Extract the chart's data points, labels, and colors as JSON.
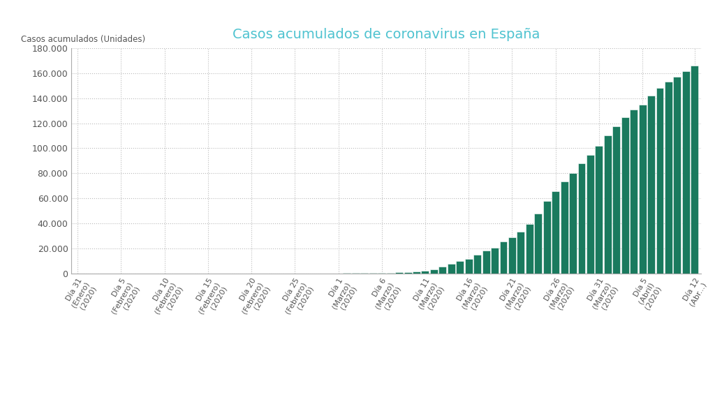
{
  "title": "Casos acumulados de coronavirus en España",
  "ylabel": "Casos acumulados (Unidades)",
  "bar_color": "#1a7a5e",
  "title_color": "#4fc3d0",
  "ylabel_color": "#666666",
  "grid_color": "#bbbbbb",
  "ylim": [
    0,
    180000
  ],
  "yticks": [
    0,
    20000,
    40000,
    60000,
    80000,
    100000,
    120000,
    140000,
    160000,
    180000
  ],
  "values": [
    1,
    1,
    1,
    1,
    1,
    1,
    1,
    1,
    1,
    1,
    2,
    2,
    2,
    2,
    2,
    2,
    2,
    2,
    2,
    2,
    2,
    2,
    2,
    2,
    2,
    3,
    6,
    13,
    32,
    45,
    84,
    120,
    165,
    222,
    259,
    400,
    500,
    673,
    1073,
    1695,
    2277,
    3146,
    5232,
    7798,
    9942,
    11748,
    14769,
    17963,
    20410,
    25374,
    28768,
    33089,
    39673,
    47610,
    57786,
    65719,
    73235,
    80110,
    87956,
    94417,
    102136,
    110238,
    117710,
    124736,
    130759,
    135032,
    141942,
    148220,
    153222,
    157022,
    161852,
    166019
  ],
  "tick_positions": [
    0,
    5,
    10,
    15,
    20,
    25,
    30,
    35,
    40,
    45,
    50,
    55,
    60,
    65,
    71
  ],
  "tick_labels": [
    "Día 31\n(Enero)\n(2020)",
    "Día 5\n(Febrero)\n(2020)",
    "Día 10\n(Febrero)\n(2020)",
    "Día 15\n(Febrero)\n(2020)",
    "Día 20\n(Febrero)\n(2020)",
    "Día 25\n(Febrero)\n(2020)",
    "Día 1\n(Marzo)\n(2020)",
    "Día 6\n(Marzo)\n(2020)",
    "Día 11\n(Marzo)\n(2020)",
    "Día 16\n(Marzo)\n(2020)",
    "Día 21\n(Marzo)\n(2020)",
    "Día 26\n(Marzo)\n(2020)",
    "Día 31\n(Marzo)\n(2020)",
    "Día 5\n(Abril)\n(2020)",
    "Día 12\n(Abr...)"
  ]
}
